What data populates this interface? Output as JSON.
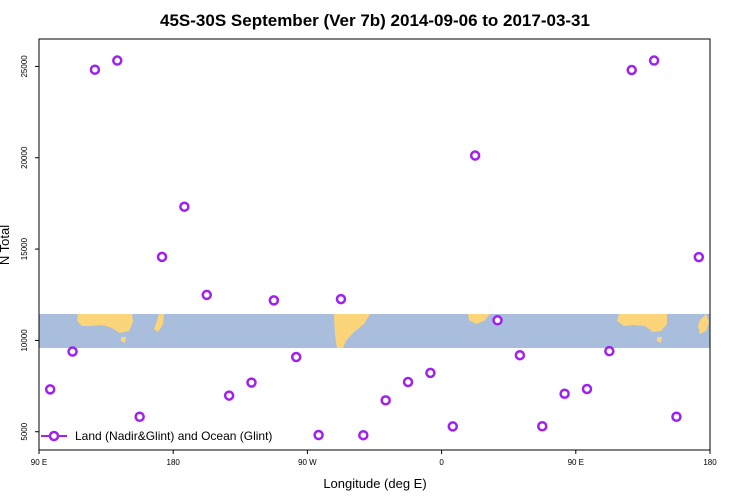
{
  "chart_data": {
    "type": "scatter",
    "title": "45S-30S September (Ver 7b)   2014-09-06 to 2017-03-31",
    "xlabel": "Longitude (deg E)",
    "ylabel": "N Total",
    "xlim": [
      90,
      540
    ],
    "ylim": [
      4000,
      26500
    ],
    "x_ticks": [
      {
        "value": 90,
        "label": "90 E"
      },
      {
        "value": 180,
        "label": "180"
      },
      {
        "value": 270,
        "label": "90 W"
      },
      {
        "value": 360,
        "label": "0"
      },
      {
        "value": 450,
        "label": "90 E"
      },
      {
        "value": 540,
        "label": "180"
      }
    ],
    "y_ticks": [
      5000,
      10000,
      15000,
      20000,
      25000
    ],
    "y_tick_labels": [
      "5000",
      "10000",
      "15000",
      "20000",
      "25000"
    ],
    "grid": false,
    "legend_position": "bottom-left",
    "marker_color": "#A020F0",
    "map_band": {
      "y_from": 6600,
      "y_to": 7800,
      "ocean_color": "#A8BEDC",
      "land_color": "#FCD47A"
    },
    "series": [
      {
        "name": "Land (Nadir&Glint) and Ocean (Glint)",
        "points": [
          {
            "x": 97.5,
            "y": 7320
          },
          {
            "x": 112.5,
            "y": 9390
          },
          {
            "x": 127.5,
            "y": 24820
          },
          {
            "x": 142.5,
            "y": 25320
          },
          {
            "x": 157.5,
            "y": 5820
          },
          {
            "x": 172.5,
            "y": 14570
          },
          {
            "x": 187.5,
            "y": 17320
          },
          {
            "x": 202.5,
            "y": 12490
          },
          {
            "x": 217.5,
            "y": 6980
          },
          {
            "x": 232.5,
            "y": 7690
          },
          {
            "x": 247.5,
            "y": 12190
          },
          {
            "x": 262.5,
            "y": 9090
          },
          {
            "x": 277.5,
            "y": 4820
          },
          {
            "x": 292.5,
            "y": 12260
          },
          {
            "x": 307.5,
            "y": 4810
          },
          {
            "x": 322.5,
            "y": 6720
          },
          {
            "x": 337.5,
            "y": 7720
          },
          {
            "x": 352.5,
            "y": 8220
          },
          {
            "x": 367.5,
            "y": 5290
          },
          {
            "x": 382.5,
            "y": 20120
          },
          {
            "x": 397.5,
            "y": 11100
          },
          {
            "x": 412.5,
            "y": 9190
          },
          {
            "x": 427.5,
            "y": 5300
          },
          {
            "x": 442.5,
            "y": 7080
          },
          {
            "x": 457.5,
            "y": 7340
          },
          {
            "x": 472.5,
            "y": 9410
          },
          {
            "x": 487.5,
            "y": 24800
          },
          {
            "x": 502.5,
            "y": 25320
          },
          {
            "x": 517.5,
            "y": 5820
          },
          {
            "x": 532.5,
            "y": 14560
          }
        ]
      }
    ]
  }
}
